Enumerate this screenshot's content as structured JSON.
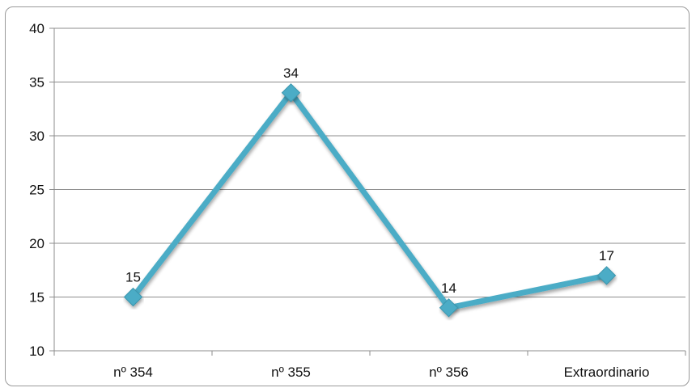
{
  "chart_data": {
    "type": "line",
    "categories": [
      "nº 354",
      "nº 355",
      "nº 356",
      "Extraordinario"
    ],
    "series": [
      {
        "values": [
          15,
          34,
          14,
          17
        ],
        "color": "#4bacc6"
      }
    ],
    "data_labels": [
      "15",
      "34",
      "14",
      "17"
    ],
    "y_ticks": [
      "10",
      "15",
      "20",
      "25",
      "30",
      "35",
      "40"
    ],
    "ylim": [
      10,
      40
    ],
    "grid": true,
    "legend": "none",
    "title": "",
    "xlabel": "",
    "ylabel": ""
  }
}
